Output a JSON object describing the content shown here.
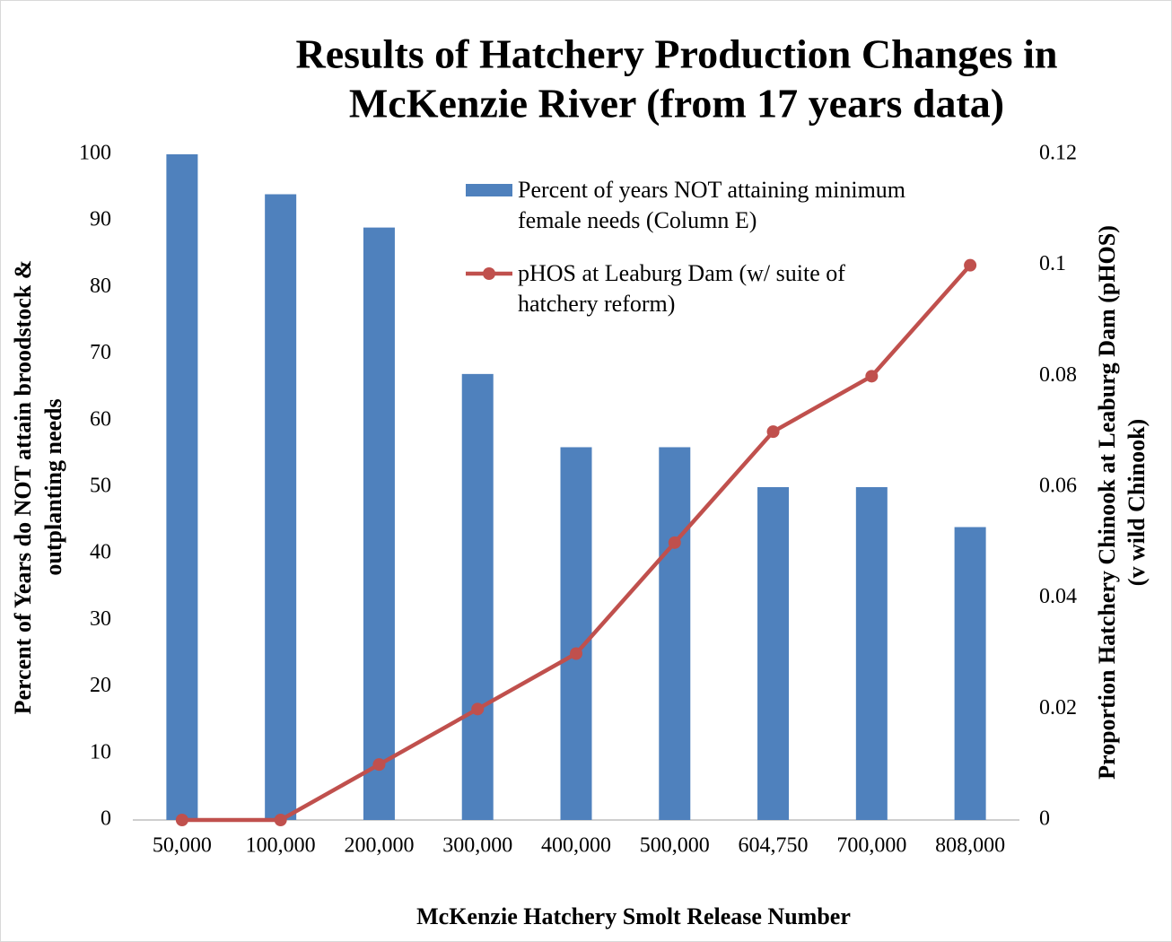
{
  "chart_data": {
    "type": "bar",
    "title": [
      "Results of Hatchery Production Changes in",
      "McKenzie River (from 17 years data)"
    ],
    "x_label": "McKenzie Hatchery Smolt Release Number",
    "y_label": [
      "Percent of Years do NOT attain broodstock &",
      "outplanting needs"
    ],
    "y2_label": [
      "Proportion Hatchery Chinook at Leaburg Dam (pHOS)",
      "(v wild Chinook)"
    ],
    "categories": [
      "50,000",
      "100,000",
      "200,000",
      "300,000",
      "400,000",
      "500,000",
      "604,750",
      "700,000",
      "808,000"
    ],
    "series": [
      {
        "name": "Percent of years NOT attaining minimum female needs (Column E)",
        "type": "bar",
        "color": "#4f81bd",
        "values": [
          100,
          94,
          89,
          67,
          56,
          56,
          50,
          50,
          44
        ]
      },
      {
        "name": "pHOS at Leaburg Dam (w/ suite of hatchery reform)",
        "type": "line",
        "axis": "y2",
        "color": "#c0504d",
        "values": [
          0,
          0,
          0.01,
          0.02,
          0.03,
          0.05,
          0.07,
          0.08,
          0.1
        ]
      }
    ],
    "ylim": [
      0,
      100
    ],
    "yticks": [
      0,
      10,
      20,
      30,
      40,
      50,
      60,
      70,
      80,
      90,
      100
    ],
    "y2lim": [
      0,
      0.12
    ],
    "y2ticks": [
      0,
      0.02,
      0.04,
      0.06,
      0.08,
      0.1,
      0.12
    ],
    "legend": "top-right"
  }
}
